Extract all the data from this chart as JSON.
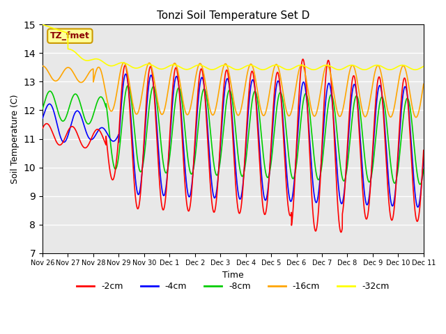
{
  "title": "Tonzi Soil Temperature Set D",
  "xlabel": "Time",
  "ylabel": "Soil Temperature (C)",
  "ylim": [
    7.0,
    15.0
  ],
  "yticks": [
    7.0,
    8.0,
    9.0,
    10.0,
    11.0,
    12.0,
    13.0,
    14.0,
    15.0
  ],
  "colors": {
    "-2cm": "#ff0000",
    "-4cm": "#0000ff",
    "-8cm": "#00cc00",
    "-16cm": "#ffa500",
    "-32cm": "#ffff00"
  },
  "legend_label": "TZ_fmet",
  "legend_bg": "#ffff99",
  "legend_edge": "#cc9900",
  "bg_color": "#e8e8e8",
  "tick_labels": [
    "Nov 26",
    "Nov 27",
    "Nov 28",
    "Nov 29",
    "Nov 30",
    "Dec 1",
    "Dec 2",
    "Dec 3",
    "Dec 4",
    "Dec 5",
    "Dec 6",
    "Dec 7",
    "Dec 8",
    "Dec 9",
    "Dec 10",
    "Dec 11"
  ]
}
